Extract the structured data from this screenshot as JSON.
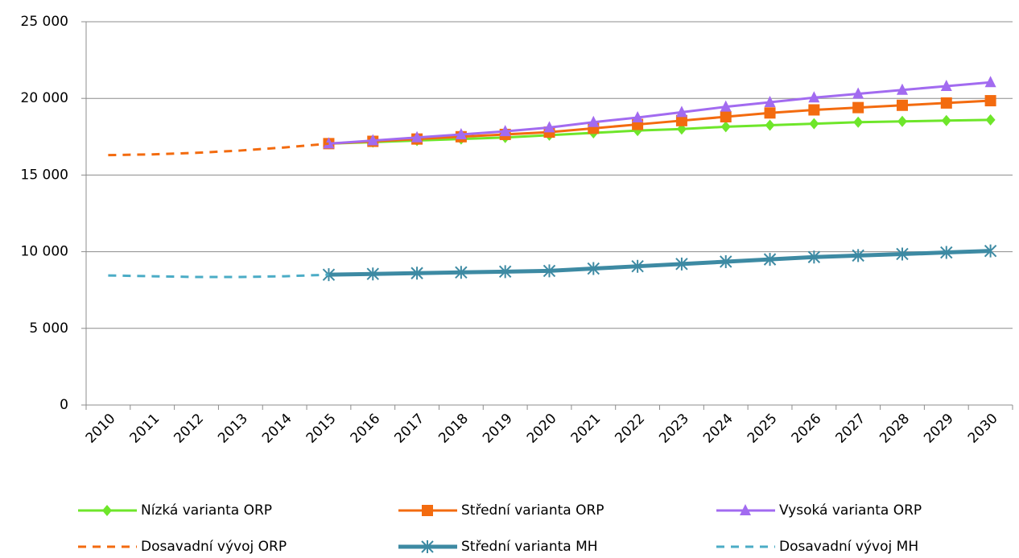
{
  "chart_data": {
    "type": "line",
    "categories": [
      "2010",
      "2011",
      "2012",
      "2013",
      "2014",
      "2015",
      "2016",
      "2017",
      "2018",
      "2019",
      "2020",
      "2021",
      "2022",
      "2023",
      "2024",
      "2025",
      "2026",
      "2027",
      "2028",
      "2029",
      "2030"
    ],
    "ylim": [
      0,
      25000
    ],
    "yticks": [
      0,
      {
        "value": 5000,
        "label": "5 000"
      },
      {
        "value": 10000,
        "label": "10 000"
      },
      {
        "value": 15000,
        "label": "15 000"
      },
      {
        "value": 20000,
        "label": "20 000"
      },
      {
        "value": 25000,
        "label": "25 000"
      }
    ],
    "grid": true,
    "legend": "bottom",
    "series": [
      {
        "name": "Nízká varianta ORP",
        "color": "#6ee62a",
        "marker": "diamond",
        "width": 3,
        "dashed": false,
        "values": [
          null,
          null,
          null,
          null,
          null,
          17050,
          17150,
          17250,
          17350,
          17450,
          17600,
          17750,
          17900,
          18000,
          18150,
          18250,
          18350,
          18450,
          18500,
          18550,
          18600
        ]
      },
      {
        "name": "Střední varianta ORP",
        "color": "#f36b0f",
        "marker": "square",
        "width": 3,
        "dashed": false,
        "values": [
          null,
          null,
          null,
          null,
          null,
          17050,
          17200,
          17350,
          17500,
          17650,
          17800,
          18050,
          18300,
          18550,
          18800,
          19050,
          19250,
          19400,
          19550,
          19700,
          19850
        ]
      },
      {
        "name": "Vysoká varianta ORP",
        "color": "#a26bf0",
        "marker": "triangle",
        "width": 3,
        "dashed": false,
        "values": [
          null,
          null,
          null,
          null,
          null,
          17050,
          17250,
          17450,
          17650,
          17850,
          18100,
          18450,
          18750,
          19100,
          19450,
          19750,
          20050,
          20300,
          20550,
          20800,
          21050
        ]
      },
      {
        "name": "Dosavadní vývoj ORP",
        "color": "#f36b0f",
        "marker": "none",
        "width": 3,
        "dashed": true,
        "values": [
          16300,
          16350,
          16450,
          16600,
          16800,
          17050,
          null,
          null,
          null,
          null,
          null,
          null,
          null,
          null,
          null,
          null,
          null,
          null,
          null,
          null,
          null
        ]
      },
      {
        "name": "Střední varianta MH",
        "color": "#3d8aa3",
        "marker": "star",
        "width": 5,
        "dashed": false,
        "values": [
          null,
          null,
          null,
          null,
          null,
          8500,
          8550,
          8600,
          8650,
          8700,
          8750,
          8900,
          9050,
          9200,
          9350,
          9500,
          9650,
          9750,
          9850,
          9950,
          10050
        ]
      },
      {
        "name": "Dosavadní vývoj MH",
        "color": "#4bacc6",
        "marker": "none",
        "width": 3,
        "dashed": true,
        "values": [
          8450,
          8400,
          8350,
          8350,
          8400,
          8500,
          null,
          null,
          null,
          null,
          null,
          null,
          null,
          null,
          null,
          null,
          null,
          null,
          null,
          null,
          null
        ]
      }
    ]
  }
}
